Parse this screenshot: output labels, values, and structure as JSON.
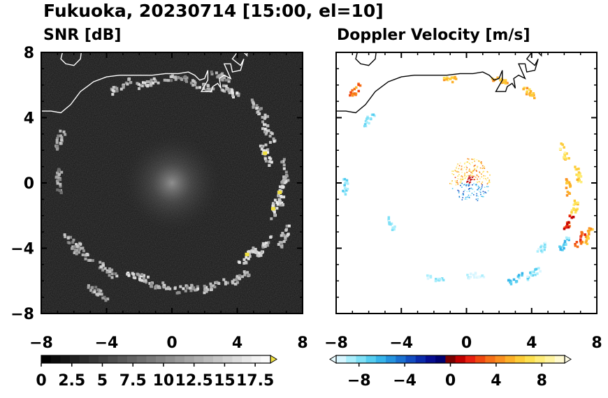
{
  "title": "Fukuoka, 20230714 [15:00, el=10]",
  "chart_data": [
    {
      "type": "heatmap",
      "panel": "left",
      "title": "SNR [dB]",
      "xlim": [
        -8,
        8
      ],
      "ylim": [
        -8,
        8
      ],
      "xticks": [
        "−8",
        "−4",
        "0",
        "4",
        "8"
      ],
      "yticks": [
        "8",
        "4",
        "0",
        "−4",
        "−8"
      ],
      "xtick_values": [
        -8,
        -4,
        0,
        4,
        8
      ],
      "ytick_values": [
        8,
        4,
        0,
        -4,
        -8
      ],
      "background": "#141414",
      "colorbar": {
        "range": [
          0,
          18.75
        ],
        "ticks": [
          "0",
          "2.5",
          "5",
          "7.5",
          "10",
          "12.5",
          "15",
          "17.5"
        ],
        "tick_values": [
          0,
          2.5,
          5,
          7.5,
          10,
          12.5,
          15,
          17.5
        ],
        "extend": "max",
        "colors": [
          "#000000",
          "#0b0b0b",
          "#161616",
          "#212121",
          "#2c2c2c",
          "#373737",
          "#424242",
          "#4d4d4d",
          "#585858",
          "#636363",
          "#6e6e6e",
          "#797979",
          "#848484",
          "#8f8f8f",
          "#9a9a9a",
          "#a5a5a5",
          "#b0b0b0",
          "#bbbbbb",
          "#c6c6c6",
          "#d1d1d1",
          "#dcdcdc",
          "#e7e7e7",
          "#f2f2f2",
          "#fafafa"
        ],
        "extend_color": "#f0e040"
      },
      "echoes": [
        {
          "x": -3.2,
          "y": 6.0,
          "v": 16
        },
        {
          "x": -1.5,
          "y": 6.2,
          "v": 17
        },
        {
          "x": 0.2,
          "y": 6.5,
          "v": 15
        },
        {
          "x": 1.8,
          "y": 6.0,
          "v": 16
        },
        {
          "x": 3.6,
          "y": 5.6,
          "v": 17
        },
        {
          "x": 5.2,
          "y": 4.6,
          "v": 16
        },
        {
          "x": 5.8,
          "y": 3.2,
          "v": 17
        },
        {
          "x": 5.7,
          "y": 1.8,
          "v": 18
        },
        {
          "x": 6.8,
          "y": 0.8,
          "v": 17
        },
        {
          "x": 6.6,
          "y": -0.6,
          "v": 18
        },
        {
          "x": 6.2,
          "y": -1.6,
          "v": 18
        },
        {
          "x": 6.8,
          "y": -3.2,
          "v": 17
        },
        {
          "x": 5.6,
          "y": -3.8,
          "v": 17
        },
        {
          "x": 4.6,
          "y": -4.4,
          "v": 18
        },
        {
          "x": 4.0,
          "y": -5.8,
          "v": 16
        },
        {
          "x": 2.5,
          "y": -6.2,
          "v": 17
        },
        {
          "x": 0.8,
          "y": -6.4,
          "v": 16
        },
        {
          "x": -0.8,
          "y": -6.2,
          "v": 16
        },
        {
          "x": -2.2,
          "y": -5.6,
          "v": 17
        },
        {
          "x": -4.0,
          "y": -5.3,
          "v": 16
        },
        {
          "x": -5.5,
          "y": -4.2,
          "v": 16
        },
        {
          "x": -6.2,
          "y": -3.6,
          "v": 15
        },
        {
          "x": -4.6,
          "y": -6.6,
          "v": 15
        },
        {
          "x": -7.0,
          "y": 2.6,
          "v": 15
        },
        {
          "x": -7.0,
          "y": 0.2,
          "v": 14
        },
        {
          "x": 3.0,
          "y": 6.6,
          "v": 15
        }
      ]
    },
    {
      "type": "heatmap",
      "panel": "right",
      "title": "Doppler Velocity [m/s]",
      "xlim": [
        -8,
        8
      ],
      "ylim": [
        -8,
        8
      ],
      "xticks": [
        "−8",
        "−4",
        "0",
        "4",
        "8"
      ],
      "yticks": [],
      "xtick_values": [
        -8,
        -4,
        0,
        4,
        8
      ],
      "background": "#ffffff",
      "colorbar": {
        "range": [
          -10,
          10
        ],
        "ticks": [
          "−8",
          "−4",
          "0",
          "4",
          "8"
        ],
        "tick_values": [
          -8,
          -4,
          0,
          4,
          8
        ],
        "extend": "both",
        "colors": [
          "#d8f6ff",
          "#aaeefc",
          "#7fe0f6",
          "#55cdf0",
          "#36b4ea",
          "#2493de",
          "#1a70d0",
          "#124cc0",
          "#0a2aaa",
          "#060d90",
          "#000070",
          "#7a0000",
          "#c00000",
          "#e82010",
          "#f04810",
          "#f67018",
          "#fa9020",
          "#fcb028",
          "#fdcc38",
          "#fde050",
          "#feec78",
          "#fff4a0",
          "#fffad0"
        ],
        "extend_low": "#e8fbff",
        "extend_high": "#fffde8"
      },
      "echoes": [
        {
          "x": -1.0,
          "y": 6.4,
          "v": 6
        },
        {
          "x": 2.0,
          "y": 6.3,
          "v": 5
        },
        {
          "x": 3.8,
          "y": 5.6,
          "v": 6
        },
        {
          "x": 5.9,
          "y": 2.0,
          "v": 7
        },
        {
          "x": 6.8,
          "y": 0.6,
          "v": 7
        },
        {
          "x": 6.2,
          "y": -0.2,
          "v": 5
        },
        {
          "x": 6.6,
          "y": -1.4,
          "v": 7
        },
        {
          "x": 7.4,
          "y": -3.2,
          "v": 5
        },
        {
          "x": 6.9,
          "y": -3.4,
          "v": 3
        },
        {
          "x": 4.7,
          "y": -3.8,
          "v": -9
        },
        {
          "x": 4.0,
          "y": -5.5,
          "v": -8
        },
        {
          "x": 3.0,
          "y": -5.8,
          "v": -7
        },
        {
          "x": 0.5,
          "y": -5.6,
          "v": -9.5
        },
        {
          "x": -2.0,
          "y": -5.8,
          "v": -9
        },
        {
          "x": -7.5,
          "y": -0.2,
          "v": -8
        },
        {
          "x": -6.1,
          "y": 3.9,
          "v": -8
        },
        {
          "x": -6.9,
          "y": 5.7,
          "v": 4
        },
        {
          "x": -4.7,
          "y": -2.5,
          "v": -9
        },
        {
          "x": 6.2,
          "y": -2.4,
          "v": 2
        },
        {
          "x": 5.9,
          "y": -3.7,
          "v": -7
        }
      ]
    }
  ]
}
